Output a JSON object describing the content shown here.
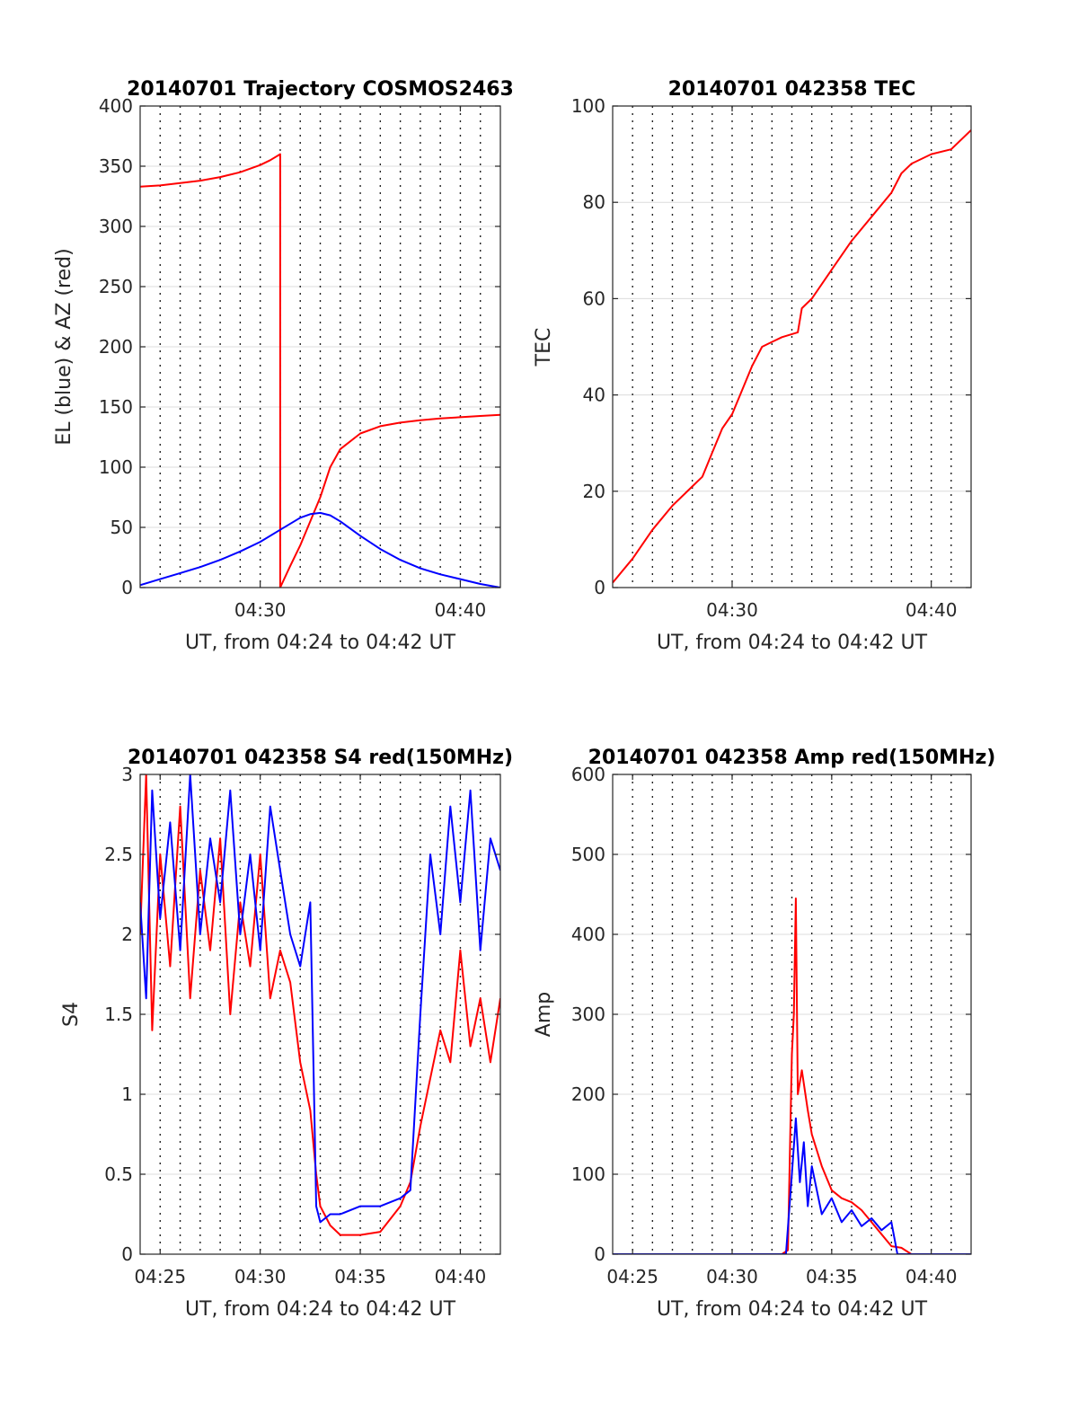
{
  "colors": {
    "red": "#ff0000",
    "blue": "#0000ff",
    "grid": "#dcdcdc",
    "axis": "#262626"
  },
  "chart_data": [
    {
      "id": "trajectory",
      "type": "line",
      "title": "20140701 Trajectory COSMOS2463",
      "xlabel": "UT, from 04:24 to 04:42 UT",
      "ylabel": "EL (blue) & AZ (red)",
      "xlim": [
        24,
        42
      ],
      "ylim": [
        0,
        400
      ],
      "xticks": [
        {
          "v": 30,
          "label": "04:30"
        },
        {
          "v": 40,
          "label": "04:40"
        }
      ],
      "yticks": [
        0,
        50,
        100,
        150,
        200,
        250,
        300,
        350,
        400
      ],
      "grid": true,
      "series": [
        {
          "color": "red",
          "x": [
            24,
            25,
            26,
            27,
            28,
            29,
            30,
            30.5,
            31,
            31,
            31.5,
            32,
            32.5,
            33,
            33.5,
            34,
            35,
            36,
            37,
            38,
            39,
            40,
            41,
            42
          ],
          "y": [
            333,
            334,
            336,
            338,
            341,
            345,
            351,
            355,
            360,
            0,
            18,
            35,
            55,
            75,
            100,
            115,
            128,
            134,
            137,
            139,
            140.5,
            141.5,
            142.5,
            143.5
          ]
        },
        {
          "color": "blue",
          "x": [
            24,
            25,
            26,
            27,
            28,
            29,
            30,
            31,
            32,
            32.5,
            33,
            33.5,
            34,
            35,
            36,
            37,
            38,
            39,
            40,
            41,
            42
          ],
          "y": [
            2,
            7,
            12,
            17,
            23,
            30,
            38,
            48,
            58,
            61,
            62,
            60,
            55,
            43,
            32,
            23,
            16,
            11,
            7,
            3,
            0
          ]
        }
      ]
    },
    {
      "id": "tec",
      "type": "line",
      "title": "20140701 042358 TEC",
      "xlabel": "UT, from 04:24 to 04:42 UT",
      "ylabel": "TEC",
      "xlim": [
        24,
        42
      ],
      "ylim": [
        0,
        100
      ],
      "xticks": [
        {
          "v": 30,
          "label": "04:30"
        },
        {
          "v": 40,
          "label": "04:40"
        }
      ],
      "yticks": [
        0,
        20,
        40,
        60,
        80,
        100
      ],
      "grid": true,
      "series": [
        {
          "color": "red",
          "x": [
            24,
            25,
            26,
            27,
            28,
            28.5,
            29,
            29.5,
            30,
            30.5,
            31,
            31.5,
            32,
            32.5,
            33.3,
            33.5,
            34,
            35,
            36,
            37,
            38,
            38.5,
            39,
            40,
            41,
            42
          ],
          "y": [
            1,
            6,
            12,
            17,
            21,
            23,
            28,
            33,
            36,
            41,
            46,
            50,
            51,
            52,
            53,
            58,
            60,
            66,
            72,
            77,
            82,
            86,
            88,
            90,
            91,
            95
          ]
        }
      ]
    },
    {
      "id": "s4",
      "type": "line",
      "title": "20140701 042358 S4 red(150MHz)",
      "xlabel": "UT, from 04:24 to 04:42 UT",
      "ylabel": "S4",
      "xlim": [
        24,
        42
      ],
      "ylim": [
        0,
        3
      ],
      "xticks": [
        {
          "v": 25,
          "label": "04:25"
        },
        {
          "v": 30,
          "label": "04:30"
        },
        {
          "v": 35,
          "label": "04:35"
        },
        {
          "v": 40,
          "label": "04:40"
        }
      ],
      "yticks": [
        0,
        0.5,
        1,
        1.5,
        2,
        2.5,
        3
      ],
      "grid": true,
      "series": [
        {
          "color": "red",
          "x": [
            24,
            24.3,
            24.6,
            25,
            25.5,
            26,
            26.5,
            27,
            27.5,
            28,
            28.5,
            29,
            29.5,
            30,
            30.5,
            31,
            31.5,
            32,
            32.5,
            32.8,
            33,
            33.5,
            34,
            35,
            36,
            37,
            37.5,
            38,
            38.5,
            39,
            39.5,
            40,
            40.5,
            41,
            41.5,
            42
          ],
          "y": [
            2.0,
            3.0,
            1.4,
            2.5,
            1.8,
            2.8,
            1.6,
            2.4,
            1.9,
            2.6,
            1.5,
            2.2,
            1.8,
            2.5,
            1.6,
            1.9,
            1.7,
            1.2,
            0.9,
            0.5,
            0.3,
            0.18,
            0.12,
            0.12,
            0.14,
            0.3,
            0.45,
            0.8,
            1.1,
            1.4,
            1.2,
            1.9,
            1.3,
            1.6,
            1.2,
            1.6
          ]
        },
        {
          "color": "blue",
          "x": [
            24,
            24.3,
            24.6,
            25,
            25.5,
            26,
            26.5,
            27,
            27.5,
            28,
            28.5,
            29,
            29.5,
            30,
            30.5,
            31,
            31.5,
            32,
            32.5,
            32.8,
            33,
            33.5,
            34,
            35,
            36,
            37,
            37.5,
            38,
            38.5,
            39,
            39.5,
            40,
            40.5,
            41,
            41.5,
            42
          ],
          "y": [
            2.2,
            1.6,
            2.9,
            2.1,
            2.7,
            1.9,
            3.0,
            2.0,
            2.6,
            2.2,
            2.9,
            2.0,
            2.5,
            1.9,
            2.8,
            2.4,
            2.0,
            1.8,
            2.2,
            0.3,
            0.2,
            0.25,
            0.25,
            0.3,
            0.3,
            0.35,
            0.4,
            1.5,
            2.5,
            2.0,
            2.8,
            2.2,
            2.9,
            1.9,
            2.6,
            2.4
          ]
        }
      ]
    },
    {
      "id": "amp",
      "type": "line",
      "title": "20140701 042358 Amp red(150MHz)",
      "xlabel": "UT, from 04:24 to 04:42 UT",
      "ylabel": "Amp",
      "xlim": [
        24,
        42
      ],
      "ylim": [
        0,
        600
      ],
      "xticks": [
        {
          "v": 25,
          "label": "04:25"
        },
        {
          "v": 30,
          "label": "04:30"
        },
        {
          "v": 35,
          "label": "04:35"
        },
        {
          "v": 40,
          "label": "04:40"
        }
      ],
      "yticks": [
        0,
        100,
        200,
        300,
        400,
        500,
        600
      ],
      "grid": true,
      "series": [
        {
          "color": "red",
          "x": [
            24,
            30,
            32.5,
            32.8,
            33.0,
            33.1,
            33.2,
            33.3,
            33.5,
            33.8,
            34,
            34.5,
            35,
            35.5,
            36,
            36.5,
            37,
            37.5,
            38,
            38.5,
            39,
            42
          ],
          "y": [
            0,
            0,
            0,
            5,
            250,
            300,
            445,
            200,
            230,
            180,
            150,
            110,
            80,
            70,
            65,
            55,
            40,
            25,
            10,
            8,
            0,
            0
          ]
        },
        {
          "color": "blue",
          "x": [
            24,
            30,
            32.7,
            33.0,
            33.2,
            33.4,
            33.6,
            33.8,
            34,
            34.5,
            35,
            35.5,
            36,
            36.5,
            37,
            37.5,
            38,
            38.3,
            42
          ],
          "y": [
            0,
            0,
            0,
            100,
            170,
            90,
            140,
            60,
            110,
            50,
            70,
            40,
            55,
            35,
            45,
            30,
            40,
            0,
            0
          ]
        }
      ]
    }
  ]
}
